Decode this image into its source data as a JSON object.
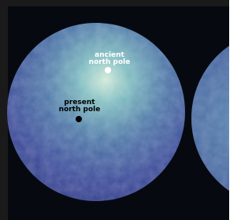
{
  "markers": [
    {
      "lines": [
        "ancient",
        "north pole"
      ]
    },
    {
      "lines": [
        "present",
        "north pole"
      ]
    }
  ]
}
